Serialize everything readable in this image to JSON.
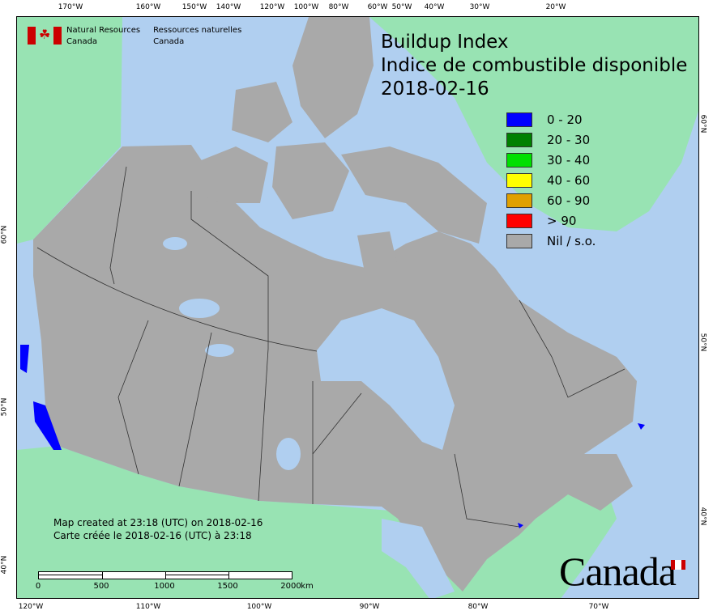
{
  "map": {
    "title": "Buildup Index",
    "title_fr": "Indice de combustible disponible",
    "date": "2018-02-16",
    "colors": {
      "ocean": "#b0cff0",
      "neighbour_land": "#98e3b3",
      "canada_land": "#a9a9a9",
      "lakes": "#b0cff0"
    }
  },
  "agency": {
    "en_line1": "Natural Resources",
    "en_line2": "Canada",
    "fr_line1": "Ressources naturelles",
    "fr_line2": "Canada"
  },
  "legend": [
    {
      "label": "0 - 20",
      "color": "#0000ff"
    },
    {
      "label": "20 - 30",
      "color": "#008000"
    },
    {
      "label": "30 - 40",
      "color": "#00e000"
    },
    {
      "label": "40 - 60",
      "color": "#ffff00"
    },
    {
      "label": "60 - 90",
      "color": "#e0a000"
    },
    {
      "label": "> 90",
      "color": "#ff0000"
    },
    {
      "label": "Nil / s.o.",
      "color": "#a9a9a9"
    }
  ],
  "graticule": {
    "top": [
      "170°W",
      "160°W",
      "150°W",
      "140°W",
      "120°W",
      "100°W",
      "80°W",
      "60°W",
      "50°W",
      "40°W",
      "30°W",
      "20°W"
    ],
    "bottom": [
      "120°W",
      "110°W",
      "100°W",
      "90°W",
      "80°W",
      "70°W"
    ],
    "left": [
      "60°N",
      "50°N",
      "40°N"
    ],
    "right": [
      "60°N",
      "50°N",
      "40°N"
    ]
  },
  "created": {
    "en": "Map created at 23:18 (UTC) on 2018-02-16",
    "fr": "Carte créée le 2018-02-16 (UTC) à 23:18"
  },
  "scalebar": {
    "labels": [
      "0",
      "500",
      "1000",
      "1500",
      "2000"
    ],
    "unit": "km"
  },
  "wordmark": "Canada"
}
